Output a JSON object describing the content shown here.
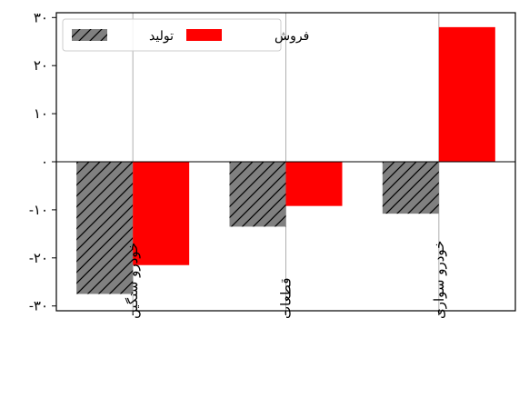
{
  "chart_data": {
    "type": "bar",
    "categories": [
      "خودرو سنگین",
      "قطعات",
      "خودرو سواری"
    ],
    "series": [
      {
        "name": "تولید",
        "values": [
          -27.5,
          -13.5,
          -10.8
        ],
        "color": "#808080",
        "hatch": "diagonal"
      },
      {
        "name": "فروش",
        "values": [
          -21.5,
          -9.2,
          28.0
        ],
        "color": "#ff0000",
        "hatch": "none"
      }
    ],
    "ylim": [
      -31,
      31
    ],
    "yticks": [
      -30,
      -20,
      -10,
      0,
      10,
      20,
      30
    ],
    "ytick_labels": [
      "-۳۰",
      "-۲۰",
      "-۱۰",
      "۰",
      "۱۰",
      "۲۰",
      "۳۰"
    ],
    "grid": "x",
    "legend_placement": "top-left"
  }
}
